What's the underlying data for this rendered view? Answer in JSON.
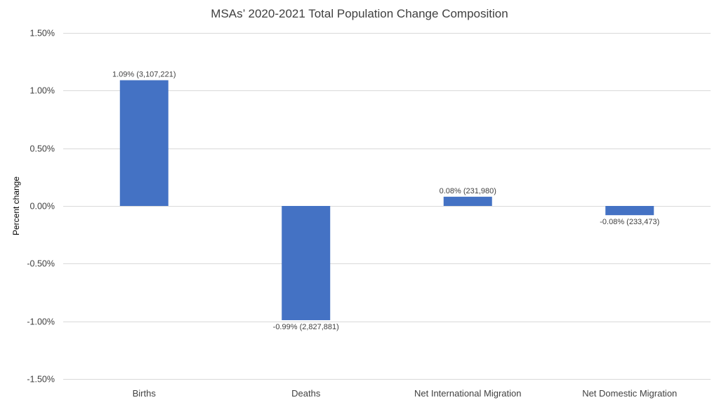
{
  "chart_data": {
    "type": "bar",
    "title": "MSAs’ 2020-2021 Total Population Change Composition",
    "xlabel": "",
    "ylabel": "Percent change",
    "categories": [
      "Births",
      "Deaths",
      "Net International Migration",
      "Net Domestic Migration"
    ],
    "values": [
      1.09,
      -0.99,
      0.08,
      -0.08
    ],
    "data_labels": [
      "1.09% (3,107,221)",
      "-0.99% (2,827,881)",
      "0.08% (231,980)",
      "-0.08% (233,473)"
    ],
    "ylim": [
      -1.5,
      1.5
    ],
    "yticks": [
      1.5,
      1.0,
      0.5,
      0.0,
      -0.5,
      -1.0,
      -1.5
    ],
    "ytick_labels": [
      "1.50%",
      "1.00%",
      "0.50%",
      "0.00%",
      "-0.50%",
      "-1.00%",
      "-1.50%"
    ],
    "grid": true,
    "legend": "none",
    "bar_color": "#4472C4"
  }
}
